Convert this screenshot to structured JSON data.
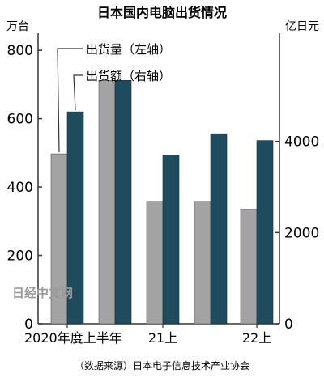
{
  "chart_data": {
    "type": "bar",
    "title": "日本国内电脑出货情况",
    "source": "（数据来源）日本电子信息技术产业协会",
    "watermark": "日经中文网",
    "left_axis": {
      "unit": "万台",
      "ticks": [
        "0",
        "200",
        "400",
        "600",
        "800"
      ],
      "range": [
        0,
        850
      ]
    },
    "right_axis": {
      "unit": "亿日元",
      "ticks": [
        "0",
        "2000",
        "4000"
      ],
      "range": [
        0,
        6375
      ]
    },
    "categories": [
      "2020年度上半年",
      "",
      "21上",
      "",
      "22上"
    ],
    "series": [
      {
        "name": "出货量（左轴）",
        "axis": "left",
        "color": "#a3a3a3",
        "values": [
          497,
          712,
          358,
          358,
          335
        ]
      },
      {
        "name": "出货额（右轴）",
        "axis": "right",
        "color": "#1f4b5e",
        "values": [
          4650,
          5340,
          3700,
          4170,
          4020
        ]
      }
    ],
    "grid": false,
    "legend_placement": "top-left"
  }
}
